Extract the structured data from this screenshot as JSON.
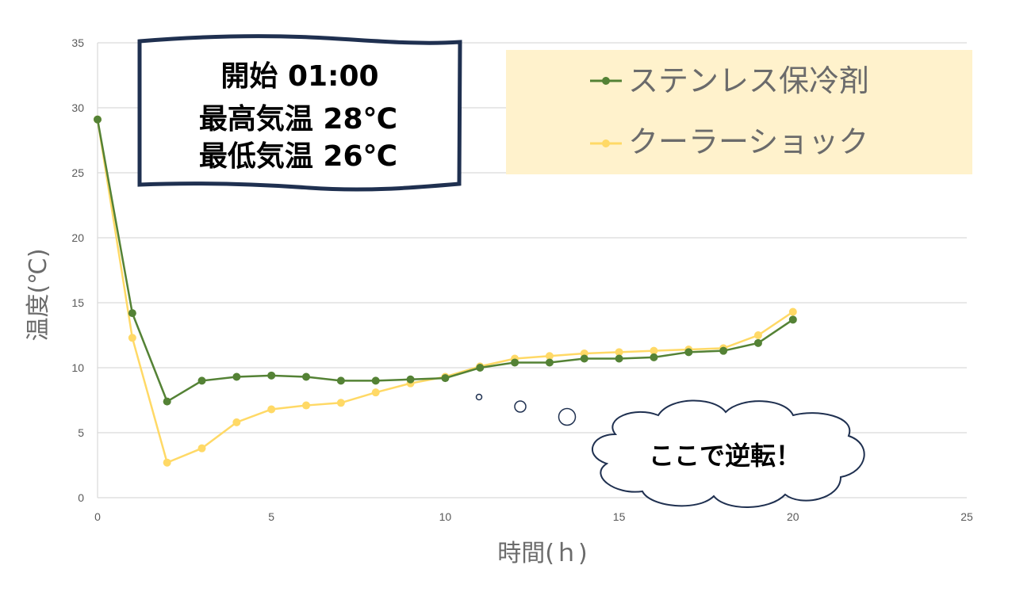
{
  "chart_data": {
    "type": "line",
    "xlabel": "時間(ｈ)",
    "ylabel": "温度(℃)",
    "xlim": [
      0,
      25
    ],
    "ylim": [
      0,
      35
    ],
    "xticks": [
      "0",
      "5",
      "10",
      "15",
      "20",
      "25"
    ],
    "yticks": [
      "0",
      "5",
      "10",
      "15",
      "20",
      "25",
      "30",
      "35"
    ],
    "grid": "horizontal",
    "legend_position": "top-right",
    "x": [
      0,
      1,
      2,
      3,
      4,
      5,
      6,
      7,
      8,
      9,
      10,
      11,
      12,
      13,
      14,
      15,
      16,
      17,
      18,
      19,
      20
    ],
    "series": [
      {
        "name": "ステンレス保冷剤",
        "color": "#548235",
        "values": [
          29.1,
          14.2,
          7.4,
          9.0,
          9.3,
          9.4,
          9.3,
          9.0,
          9.0,
          9.1,
          9.2,
          10.0,
          10.4,
          10.4,
          10.7,
          10.7,
          10.8,
          11.2,
          11.3,
          11.9,
          13.7
        ]
      },
      {
        "name": "クーラーショック",
        "color": "#FFD966",
        "values": [
          29.1,
          12.3,
          2.7,
          3.8,
          5.8,
          6.8,
          7.1,
          7.3,
          8.1,
          8.8,
          9.3,
          10.1,
          10.7,
          10.9,
          11.1,
          11.2,
          11.3,
          11.4,
          11.5,
          12.5,
          14.3
        ]
      }
    ]
  },
  "info_box": {
    "line1": "開始 01:00",
    "line2": "最高気温 28℃",
    "line3": "最低気温 26℃"
  },
  "callout": {
    "text": "ここで逆転！"
  },
  "colors": {
    "grid": "#d9d9d9",
    "legend_bg": "#FFF2CC",
    "info_border": "#1F3050"
  }
}
